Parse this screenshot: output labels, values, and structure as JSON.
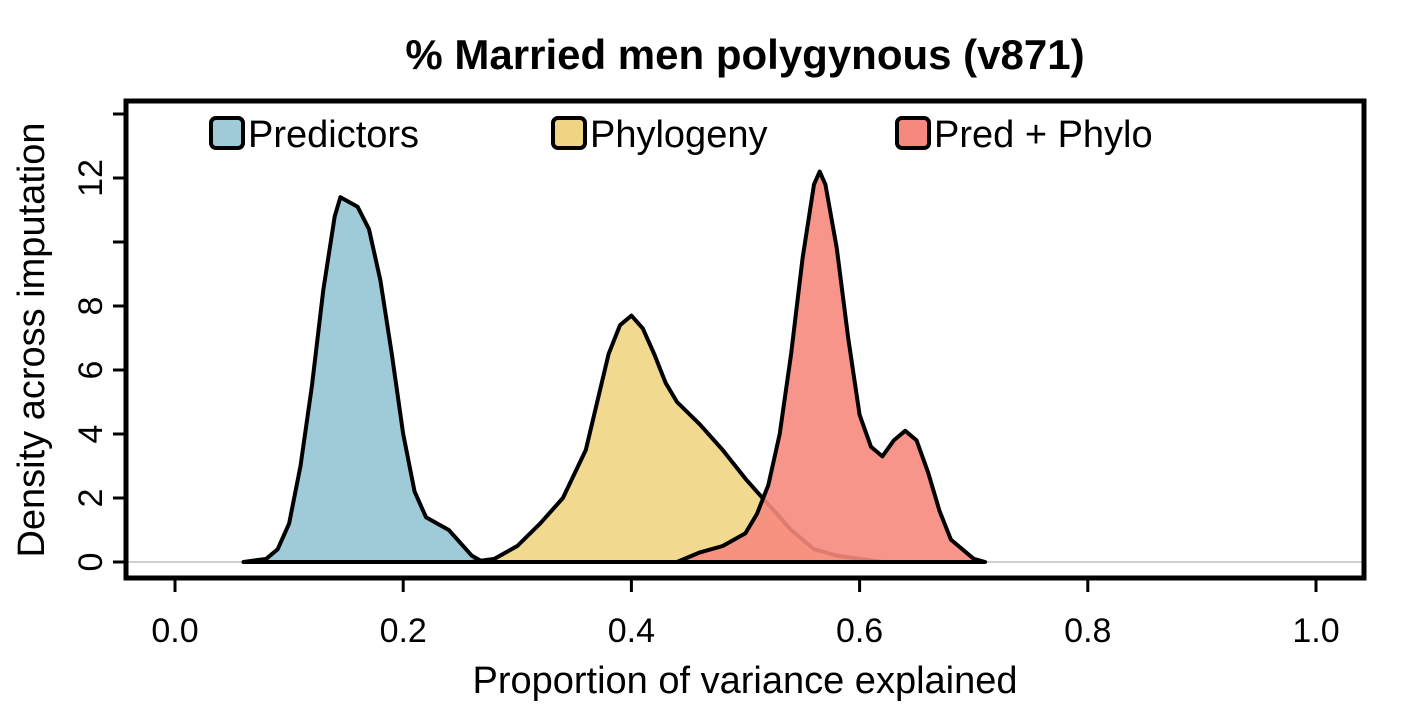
{
  "chart_data": {
    "type": "area",
    "title": "% Married men polygynous (v871)",
    "xlabel": "Proportion of variance explained",
    "ylabel": "Density across imputation",
    "xlim": [
      0.0,
      1.0
    ],
    "ylim": [
      0,
      12
    ],
    "x_ticks": [
      "0.0",
      "0.2",
      "0.4",
      "0.6",
      "0.8",
      "1.0"
    ],
    "y_ticks": [
      "0",
      "2",
      "4",
      "6",
      "8",
      "12"
    ],
    "legend_position": "top",
    "series": [
      {
        "name": "Predictors",
        "color": "#9ecbd7",
        "points": [
          [
            0.06,
            0.0
          ],
          [
            0.08,
            0.1
          ],
          [
            0.09,
            0.4
          ],
          [
            0.1,
            1.2
          ],
          [
            0.11,
            3.0
          ],
          [
            0.12,
            5.5
          ],
          [
            0.13,
            8.5
          ],
          [
            0.14,
            10.8
          ],
          [
            0.145,
            11.4
          ],
          [
            0.16,
            11.1
          ],
          [
            0.17,
            10.4
          ],
          [
            0.18,
            8.8
          ],
          [
            0.19,
            6.5
          ],
          [
            0.2,
            4.0
          ],
          [
            0.21,
            2.2
          ],
          [
            0.22,
            1.4
          ],
          [
            0.23,
            1.2
          ],
          [
            0.24,
            1.0
          ],
          [
            0.25,
            0.6
          ],
          [
            0.26,
            0.2
          ],
          [
            0.27,
            0.0
          ]
        ]
      },
      {
        "name": "Phylogeny",
        "color": "#efd583",
        "points": [
          [
            0.26,
            0.0
          ],
          [
            0.28,
            0.1
          ],
          [
            0.3,
            0.5
          ],
          [
            0.32,
            1.2
          ],
          [
            0.34,
            2.0
          ],
          [
            0.36,
            3.5
          ],
          [
            0.37,
            5.0
          ],
          [
            0.38,
            6.5
          ],
          [
            0.39,
            7.4
          ],
          [
            0.4,
            7.7
          ],
          [
            0.41,
            7.3
          ],
          [
            0.42,
            6.5
          ],
          [
            0.43,
            5.6
          ],
          [
            0.44,
            5.0
          ],
          [
            0.46,
            4.3
          ],
          [
            0.48,
            3.5
          ],
          [
            0.5,
            2.6
          ],
          [
            0.52,
            1.8
          ],
          [
            0.54,
            1.0
          ],
          [
            0.56,
            0.4
          ],
          [
            0.58,
            0.2
          ],
          [
            0.6,
            0.1
          ],
          [
            0.62,
            0.0
          ]
        ]
      },
      {
        "name": "Pred + Phylo",
        "color": "#f6897d",
        "points": [
          [
            0.44,
            0.0
          ],
          [
            0.46,
            0.3
          ],
          [
            0.48,
            0.5
          ],
          [
            0.5,
            0.9
          ],
          [
            0.51,
            1.5
          ],
          [
            0.52,
            2.4
          ],
          [
            0.53,
            4.0
          ],
          [
            0.54,
            6.5
          ],
          [
            0.55,
            9.5
          ],
          [
            0.56,
            11.8
          ],
          [
            0.565,
            12.2
          ],
          [
            0.57,
            11.8
          ],
          [
            0.58,
            9.8
          ],
          [
            0.59,
            7.0
          ],
          [
            0.6,
            4.6
          ],
          [
            0.61,
            3.6
          ],
          [
            0.62,
            3.3
          ],
          [
            0.63,
            3.8
          ],
          [
            0.64,
            4.1
          ],
          [
            0.65,
            3.8
          ],
          [
            0.66,
            2.8
          ],
          [
            0.67,
            1.6
          ],
          [
            0.68,
            0.7
          ],
          [
            0.7,
            0.1
          ],
          [
            0.71,
            0.0
          ]
        ]
      }
    ]
  }
}
